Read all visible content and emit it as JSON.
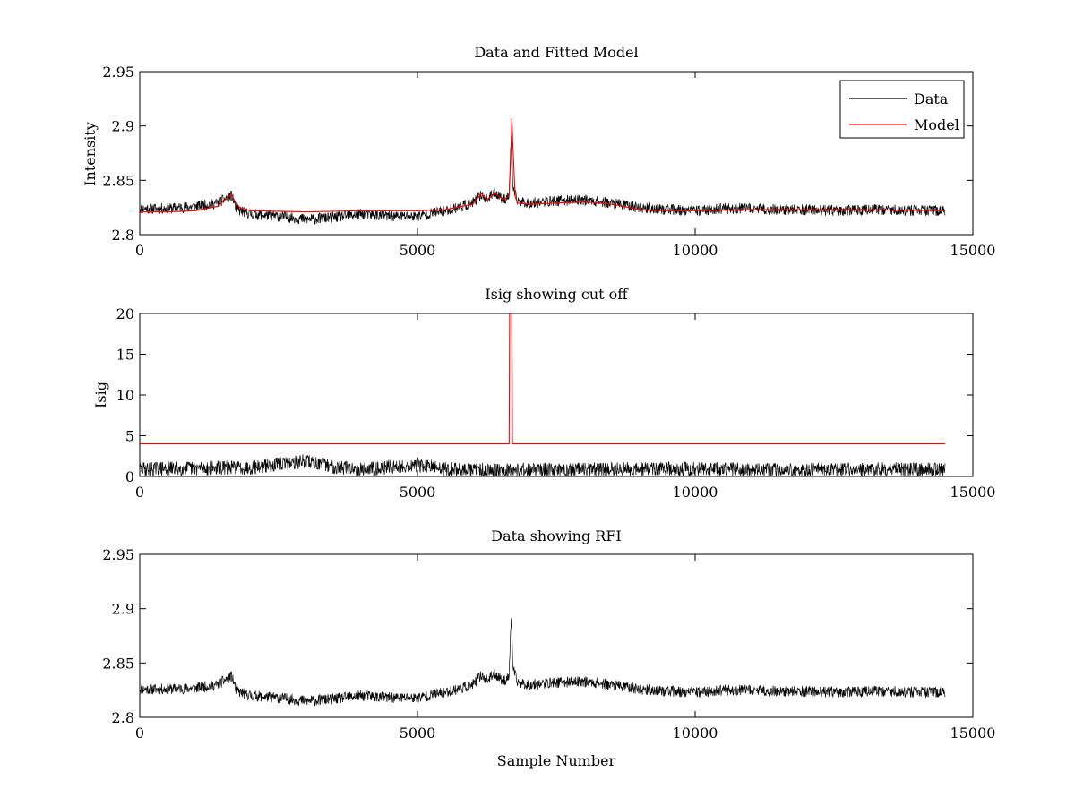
{
  "chart_data": [
    {
      "type": "line",
      "title": "Data and Fitted Model",
      "xlabel": "",
      "ylabel": "Intensity",
      "xlim": [
        0,
        15000
      ],
      "ylim": [
        2.8,
        2.95
      ],
      "xticks": [
        0,
        5000,
        10000,
        15000
      ],
      "xtick_labels": [
        "0",
        "5000",
        "10000",
        "15000"
      ],
      "yticks": [
        2.8,
        2.85,
        2.9,
        2.95
      ],
      "ytick_labels": [
        "2.8",
        "2.85",
        "2.9",
        "2.95"
      ],
      "legend": {
        "position": "top-right",
        "entries": [
          "Data",
          "Model"
        ]
      },
      "series": [
        {
          "name": "Data",
          "color": "#000000",
          "noise_amplitude": 0.005,
          "x": [
            0,
            500,
            1000,
            1400,
            1650,
            1750,
            2000,
            2500,
            3000,
            3500,
            4000,
            4500,
            5000,
            5500,
            6000,
            6150,
            6250,
            6400,
            6550,
            6650,
            6690,
            6720,
            6800,
            7000,
            7500,
            8000,
            8500,
            9000,
            9500,
            10000,
            10500,
            11000,
            11500,
            12000,
            12500,
            13000,
            13500,
            14000,
            14500
          ],
          "values": [
            2.824,
            2.824,
            2.826,
            2.829,
            2.836,
            2.823,
            2.819,
            2.817,
            2.814,
            2.816,
            2.819,
            2.817,
            2.817,
            2.822,
            2.829,
            2.837,
            2.832,
            2.839,
            2.832,
            2.836,
            2.895,
            2.842,
            2.831,
            2.829,
            2.831,
            2.832,
            2.829,
            2.825,
            2.823,
            2.822,
            2.824,
            2.824,
            2.823,
            2.823,
            2.822,
            2.823,
            2.823,
            2.822,
            2.822
          ]
        },
        {
          "name": "Model",
          "color": "#ff0000",
          "x": [
            0,
            500,
            1000,
            1400,
            1650,
            1700,
            1800,
            2000,
            3000,
            4000,
            5000,
            5500,
            6000,
            6150,
            6250,
            6400,
            6550,
            6650,
            6680,
            6700,
            6720,
            6760,
            6800,
            7000,
            7500,
            8000,
            8500,
            9000,
            9500,
            10000,
            11000,
            12000,
            13000,
            14500
          ],
          "values": [
            2.821,
            2.821,
            2.822,
            2.826,
            2.837,
            2.832,
            2.825,
            2.822,
            2.821,
            2.822,
            2.822,
            2.823,
            2.828,
            2.838,
            2.832,
            2.838,
            2.832,
            2.836,
            2.87,
            2.907,
            2.88,
            2.835,
            2.829,
            2.828,
            2.829,
            2.83,
            2.828,
            2.823,
            2.822,
            2.822,
            2.823,
            2.823,
            2.823,
            2.822
          ]
        }
      ]
    },
    {
      "type": "line",
      "title": "Isig showing cut off",
      "xlabel": "",
      "ylabel": "Isig",
      "xlim": [
        0,
        15000
      ],
      "ylim": [
        0,
        20
      ],
      "xticks": [
        0,
        5000,
        10000,
        15000
      ],
      "xtick_labels": [
        "0",
        "5000",
        "10000",
        "15000"
      ],
      "yticks": [
        0,
        5,
        10,
        15,
        20
      ],
      "ytick_labels": [
        "0",
        "5",
        "10",
        "15",
        "20"
      ],
      "series": [
        {
          "name": "Isig",
          "color": "#000000",
          "noise_amplitude": 0.9,
          "x": [
            0,
            1000,
            2000,
            3000,
            3500,
            4000,
            5000,
            5500,
            6000,
            7000,
            8000,
            9000,
            10000,
            11000,
            12000,
            13000,
            13500,
            14000,
            14500
          ],
          "values": [
            0.9,
            1.0,
            1.1,
            1.9,
            1.2,
            0.9,
            1.4,
            0.9,
            0.8,
            0.8,
            0.8,
            0.9,
            0.9,
            0.8,
            0.8,
            0.8,
            0.9,
            0.8,
            0.8
          ]
        },
        {
          "name": "Cut off",
          "color": "#ff0000",
          "x": [
            0,
            6650,
            6660,
            6700,
            6710,
            14500
          ],
          "values": [
            4,
            4,
            20,
            20,
            4,
            4
          ]
        }
      ]
    },
    {
      "type": "line",
      "title": "Data showing RFI",
      "xlabel": "Sample Number",
      "ylabel": "",
      "xlim": [
        0,
        15000
      ],
      "ylim": [
        2.8,
        2.95
      ],
      "xticks": [
        0,
        5000,
        10000,
        15000
      ],
      "xtick_labels": [
        "0",
        "5000",
        "10000",
        "15000"
      ],
      "yticks": [
        2.8,
        2.85,
        2.9,
        2.95
      ],
      "ytick_labels": [
        "2.8",
        "2.85",
        "2.9",
        "2.95"
      ],
      "series": [
        {
          "name": "Data",
          "color": "#000000",
          "noise_amplitude": 0.005,
          "x": [
            0,
            500,
            1000,
            1400,
            1650,
            1750,
            2000,
            2500,
            3000,
            3500,
            4000,
            4500,
            5000,
            5500,
            6000,
            6150,
            6250,
            6400,
            6550,
            6650,
            6690,
            6720,
            6800,
            7000,
            7500,
            8000,
            8500,
            9000,
            9500,
            10000,
            10500,
            11000,
            11500,
            12000,
            12500,
            13000,
            13500,
            14000,
            14500
          ],
          "values": [
            2.826,
            2.826,
            2.827,
            2.83,
            2.838,
            2.824,
            2.82,
            2.818,
            2.815,
            2.817,
            2.82,
            2.818,
            2.818,
            2.823,
            2.83,
            2.839,
            2.834,
            2.84,
            2.833,
            2.838,
            2.895,
            2.845,
            2.832,
            2.83,
            2.832,
            2.833,
            2.83,
            2.826,
            2.824,
            2.823,
            2.825,
            2.825,
            2.824,
            2.824,
            2.823,
            2.824,
            2.824,
            2.823,
            2.823
          ]
        }
      ]
    }
  ]
}
